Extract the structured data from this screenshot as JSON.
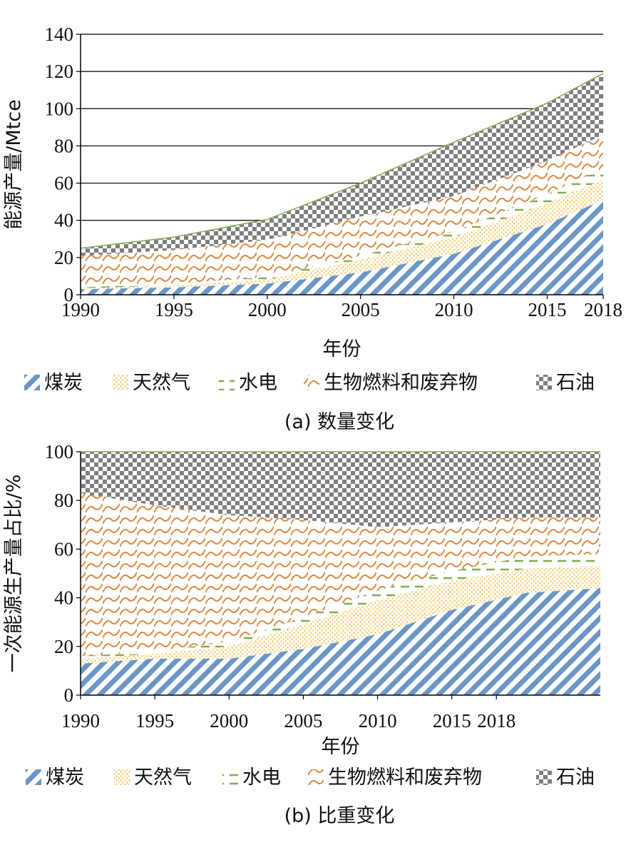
{
  "colors": {
    "coal": "#6b97c8",
    "gas": "#f2c65a",
    "hydro": "#7fae4f",
    "bio": "#d98a45",
    "oil": "#7f7f7f",
    "outline": "#7fae4f"
  },
  "legend_items": [
    {
      "label": "煤炭",
      "key": "coal"
    },
    {
      "label": "天然气",
      "key": "gas"
    },
    {
      "label": "水电",
      "key": "hydro"
    },
    {
      "label": "生物燃料和废弃物",
      "key": "bio"
    },
    {
      "label": "石油",
      "key": "oil"
    }
  ],
  "chart_data": [
    {
      "type": "area",
      "stacked": true,
      "caption": "(a) 数量变化",
      "xlabel": "年份",
      "ylabel": "能源产量/Mtce",
      "ylim": [
        0,
        140
      ],
      "yticks": [
        0,
        20,
        40,
        60,
        80,
        100,
        120,
        140
      ],
      "xlim": [
        1990,
        2018
      ],
      "xticks": [
        1990,
        1995,
        2000,
        2005,
        2010,
        2015,
        2018
      ],
      "grid": "horizontal",
      "legend": "bottom",
      "x": [
        1990,
        1995,
        2000,
        2005,
        2010,
        2015,
        2018
      ],
      "series": [
        {
          "name": "煤炭",
          "key": "coal",
          "values": [
            3,
            4,
            6,
            12,
            22,
            38,
            51
          ]
        },
        {
          "name": "天然气",
          "key": "gas",
          "values": [
            0.5,
            1,
            2,
            7,
            9,
            11,
            11
          ]
        },
        {
          "name": "水电",
          "key": "hydro",
          "values": [
            0.5,
            1,
            1.5,
            2,
            3,
            5,
            6
          ]
        },
        {
          "name": "生物燃料和废弃物",
          "key": "bio",
          "values": [
            17,
            18,
            20,
            21,
            19,
            18,
            18
          ]
        },
        {
          "name": "石油",
          "key": "oil",
          "values": [
            4,
            7,
            11,
            18,
            29,
            31,
            33
          ]
        }
      ]
    },
    {
      "type": "area",
      "stacked": true,
      "caption": "(b) 比重变化",
      "xlabel": "年份",
      "ylabel": "一次能源生产量占比/%",
      "ylim": [
        0,
        100
      ],
      "yticks": [
        0,
        20,
        40,
        60,
        80,
        100
      ],
      "xlim": [
        1990,
        2025
      ],
      "xticks": [
        1990,
        1995,
        2000,
        2005,
        2010,
        2015,
        2018
      ],
      "grid": "none",
      "legend": "bottom",
      "x": [
        1990,
        1995,
        2000,
        2005,
        2010,
        2015,
        2020,
        2025
      ],
      "series": [
        {
          "name": "煤炭",
          "key": "coal",
          "values": [
            13,
            15,
            15,
            19,
            25,
            35,
            42,
            44
          ]
        },
        {
          "name": "天然气",
          "key": "gas",
          "values": [
            2,
            2,
            5,
            10,
            14,
            12,
            10,
            9
          ]
        },
        {
          "name": "水电",
          "key": "hydro",
          "values": [
            1,
            1,
            2,
            3,
            4,
            4,
            5,
            5
          ]
        },
        {
          "name": "生物燃料和废弃物",
          "key": "bio",
          "values": [
            67,
            60,
            52,
            40,
            26,
            20,
            16,
            15
          ]
        },
        {
          "name": "石油",
          "key": "oil",
          "values": [
            17,
            22,
            26,
            28,
            31,
            29,
            27,
            27
          ]
        }
      ]
    }
  ]
}
